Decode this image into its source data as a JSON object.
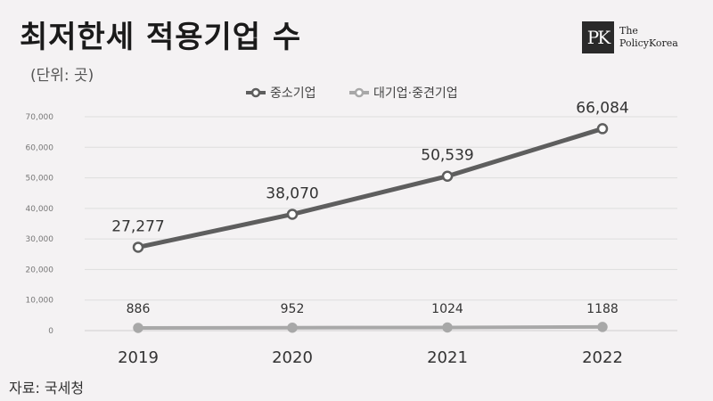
{
  "header": {
    "title": "최저한세 적용기업 수",
    "unit": "(단위: 곳)"
  },
  "logo": {
    "mark": "PK",
    "line1": "The",
    "line2": "PolicyKorea"
  },
  "source": "자료: 국세청",
  "chart_data": {
    "type": "line",
    "categories": [
      "2019",
      "2020",
      "2021",
      "2022"
    ],
    "ylim": [
      0,
      70000
    ],
    "yticks": [
      "0",
      "10,000",
      "20,000",
      "30,000",
      "40,000",
      "50,000",
      "60,000",
      "70,000"
    ],
    "grid": true,
    "legend_position": "top",
    "series": [
      {
        "name": "중소기업",
        "values": [
          27277,
          38070,
          50539,
          66084
        ],
        "labels": [
          "27,277",
          "38,070",
          "50,539",
          "66,084"
        ],
        "color": "#5e5e5e"
      },
      {
        "name": "대기업·중견기업",
        "values": [
          886,
          952,
          1024,
          1188
        ],
        "labels": [
          "886",
          "952",
          "1024",
          "1188"
        ],
        "color": "#a8a8a8"
      }
    ]
  }
}
